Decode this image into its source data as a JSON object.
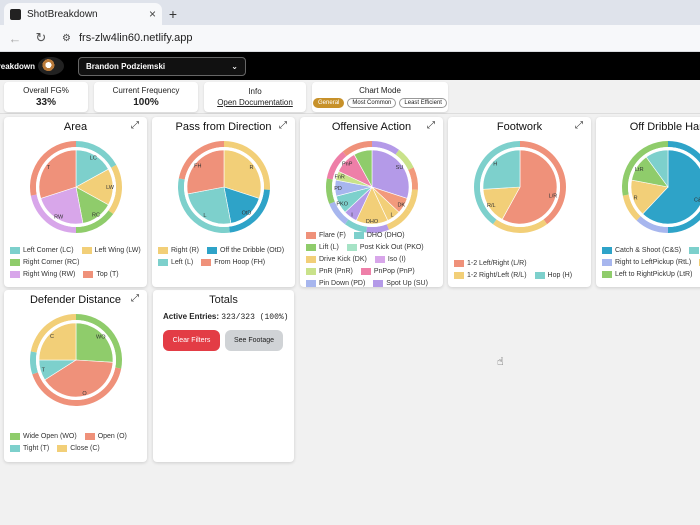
{
  "browser": {
    "tab_title": "ShotBreakdown",
    "tab_close": "×",
    "new_tab": "+",
    "url": "frs-zlw4lin60.netlify.app",
    "back_icon": "←",
    "reload_icon": "↻",
    "site_icon": "⚙"
  },
  "app": {
    "brand": "ShotBreakdown",
    "player": "Brandon Podziemski",
    "player_chevron": "⌄"
  },
  "stats": {
    "fg_label": "Overall FG%",
    "fg_value": "33%",
    "freq_label": "Current Frequency",
    "freq_value": "100%",
    "info_label": "Info",
    "info_link": "Open Documentation",
    "mode_label": "Chart Mode",
    "modes": [
      "General",
      "Most Common",
      "Least Efficient"
    ]
  },
  "colors": {
    "green": "#8fcc6b",
    "teal": "#7dd0cc",
    "yellow": "#f2cf78",
    "salmon": "#ef917a",
    "lilac": "#d8a6ea",
    "blue": "#2ea3c8",
    "purple": "#b49ae8",
    "lightblue": "#a7b6ee",
    "pink": "#ee7fa8",
    "lime": "#c9e28a",
    "mint": "#a6e3c6",
    "coral": "#f29a7c"
  },
  "charts": [
    {
      "title": "Area",
      "expand_icon": "⤢",
      "slices": [
        {
          "code": "LC",
          "pct": 0.17,
          "color": "#7dd0cc"
        },
        {
          "code": "LW",
          "pct": 0.16,
          "color": "#f2cf78"
        },
        {
          "code": "RC",
          "pct": 0.14,
          "color": "#8fcc6b"
        },
        {
          "code": "RW",
          "pct": 0.23,
          "color": "#d8a6ea"
        },
        {
          "code": "T",
          "pct": 0.3,
          "color": "#ef917a"
        }
      ],
      "outer": [
        {
          "pct": 0.17,
          "color": "#7dd0cc"
        },
        {
          "pct": 0.18,
          "color": "#f2cf78"
        },
        {
          "pct": 0.15,
          "color": "#8fcc6b"
        },
        {
          "pct": 0.22,
          "color": "#d8a6ea"
        },
        {
          "pct": 0.28,
          "color": "#ef917a"
        }
      ],
      "legend": [
        {
          "label": "Left Corner (LC)",
          "color": "#7dd0cc"
        },
        {
          "label": "Left Wing (LW)",
          "color": "#f2cf78"
        },
        {
          "label": "Right Corner (RC)",
          "color": "#8fcc6b"
        },
        {
          "label": "Right Wing (RW)",
          "color": "#d8a6ea"
        },
        {
          "label": "Top (T)",
          "color": "#ef917a"
        }
      ]
    },
    {
      "title": "Pass from Direction",
      "expand_icon": "⤢",
      "slices": [
        {
          "code": "R",
          "pct": 0.3,
          "color": "#f2cf78"
        },
        {
          "code": "OtD",
          "pct": 0.17,
          "color": "#2ea3c8"
        },
        {
          "code": "L",
          "pct": 0.25,
          "color": "#7dd0cc"
        },
        {
          "code": "FH",
          "pct": 0.28,
          "color": "#ef917a"
        }
      ],
      "outer": [
        {
          "pct": 0.26,
          "color": "#f2cf78"
        },
        {
          "pct": 0.22,
          "color": "#2ea3c8"
        },
        {
          "pct": 0.3,
          "color": "#7dd0cc"
        },
        {
          "pct": 0.22,
          "color": "#ef917a"
        }
      ],
      "legend": [
        {
          "label": "Right (R)",
          "color": "#f2cf78"
        },
        {
          "label": "Off the Dribble (OtD)",
          "color": "#2ea3c8"
        },
        {
          "label": "Left (L)",
          "color": "#7dd0cc"
        },
        {
          "label": "From Hoop (FH)",
          "color": "#ef917a"
        }
      ]
    },
    {
      "title": "Offensive Action",
      "expand_icon": "⤢",
      "slices": [
        {
          "code": "SU",
          "pct": 0.3,
          "color": "#b49ae8"
        },
        {
          "code": "DK",
          "pct": 0.07,
          "color": "#f29a7c"
        },
        {
          "code": "L",
          "pct": 0.06,
          "color": "#f2cf78"
        },
        {
          "code": "DHO",
          "pct": 0.14,
          "color": "#f2cf78"
        },
        {
          "code": "I",
          "pct": 0.06,
          "color": "#b49ae8"
        },
        {
          "code": "PKO",
          "pct": 0.08,
          "color": "#7dd0cc"
        },
        {
          "code": "PD",
          "pct": 0.07,
          "color": "#a7b6ee"
        },
        {
          "code": "FnR",
          "pct": 0.04,
          "color": "#c9e28a"
        },
        {
          "code": "PnP",
          "pct": 0.1,
          "color": "#ee7fa8"
        },
        {
          "code": "",
          "pct": 0.08,
          "color": "#8fcc6b"
        }
      ],
      "outer": [
        {
          "pct": 0.1,
          "color": "#b49ae8"
        },
        {
          "pct": 0.08,
          "color": "#c9e28a"
        },
        {
          "pct": 0.08,
          "color": "#f29a7c"
        },
        {
          "pct": 0.08,
          "color": "#f2cf78"
        },
        {
          "pct": 0.1,
          "color": "#f2cf78"
        },
        {
          "pct": 0.08,
          "color": "#b49ae8"
        },
        {
          "pct": 0.08,
          "color": "#7dd0cc"
        },
        {
          "pct": 0.09,
          "color": "#a7b6ee"
        },
        {
          "pct": 0.09,
          "color": "#8fcc6b"
        },
        {
          "pct": 0.11,
          "color": "#ee7fa8"
        },
        {
          "pct": 0.11,
          "color": "#ef917a"
        }
      ],
      "legend": [
        {
          "label": "Flare (F)",
          "color": "#ef917a"
        },
        {
          "label": "DHO (DHO)",
          "color": "#7dd0cc"
        },
        {
          "label": "Lift (L)",
          "color": "#8fcc6b"
        },
        {
          "label": "Post Kick Out (PKO)",
          "color": "#a6e3c6"
        },
        {
          "label": "Drive Kick (DK)",
          "color": "#f2cf78"
        },
        {
          "label": "Iso (I)",
          "color": "#d8a6ea"
        },
        {
          "label": "PnR (PnR)",
          "color": "#c9e28a"
        },
        {
          "label": "PnPop (PnP)",
          "color": "#ee7fa8"
        },
        {
          "label": "Pin Down (PD)",
          "color": "#a7b6ee"
        },
        {
          "label": "Spot Up (SU)",
          "color": "#b49ae8"
        }
      ]
    },
    {
      "title": "Footwork",
      "expand_icon": "⤢",
      "slices": [
        {
          "code": "L/R",
          "pct": 0.58,
          "color": "#ef917a"
        },
        {
          "code": "R/L",
          "pct": 0.16,
          "color": "#f2cf78"
        },
        {
          "code": "H",
          "pct": 0.26,
          "color": "#7dd0cc"
        }
      ],
      "outer": [
        {
          "pct": 0.4,
          "color": "#ef917a"
        },
        {
          "pct": 0.2,
          "color": "#f2cf78"
        },
        {
          "pct": 0.4,
          "color": "#7dd0cc"
        }
      ],
      "legend": [
        {
          "label": "1-2 Left/Right (L/R)",
          "color": "#ef917a"
        },
        {
          "label": "1-2 Right/Left (R/L)",
          "color": "#f2cf78"
        },
        {
          "label": "Hop (H)",
          "color": "#7dd0cc"
        }
      ]
    },
    {
      "title": "Off Dribble Han",
      "expand_icon": "",
      "slices": [
        {
          "code": "C&S",
          "pct": 0.62,
          "color": "#2ea3c8"
        },
        {
          "code": "R",
          "pct": 0.16,
          "color": "#f2cf78"
        },
        {
          "code": "LtR",
          "pct": 0.12,
          "color": "#8fcc6b"
        },
        {
          "code": "",
          "pct": 0.1,
          "color": "#7dd0cc"
        }
      ],
      "outer": [
        {
          "pct": 0.5,
          "color": "#2ea3c8"
        },
        {
          "pct": 0.12,
          "color": "#a7b6ee"
        },
        {
          "pct": 0.1,
          "color": "#f2cf78"
        },
        {
          "pct": 0.28,
          "color": "#8fcc6b"
        }
      ],
      "legend": [
        {
          "label": "Catch & Shoot (C&S)",
          "color": "#2ea3c8"
        },
        {
          "label": "Le",
          "color": "#7dd0cc"
        },
        {
          "label": "Right to LeftPickup (RtL)",
          "color": "#a7b6ee"
        },
        {
          "label": "",
          "color": "#f2cf78"
        },
        {
          "label": "Left to RightPickUp (LtR)",
          "color": "#8fcc6b"
        }
      ]
    },
    {
      "title": "Defender Distance",
      "expand_icon": "⤢",
      "slices": [
        {
          "code": "WO",
          "pct": 0.26,
          "color": "#8fcc6b"
        },
        {
          "code": "O",
          "pct": 0.4,
          "color": "#ef917a"
        },
        {
          "code": "T",
          "pct": 0.09,
          "color": "#7dd0cc"
        },
        {
          "code": "C",
          "pct": 0.25,
          "color": "#f2cf78"
        }
      ],
      "outer": [
        {
          "pct": 0.28,
          "color": "#8fcc6b"
        },
        {
          "pct": 0.42,
          "color": "#ef917a"
        },
        {
          "pct": 0.08,
          "color": "#7dd0cc"
        },
        {
          "pct": 0.22,
          "color": "#f2cf78"
        }
      ],
      "legend": [
        {
          "label": "Wide Open (WO)",
          "color": "#8fcc6b"
        },
        {
          "label": "Open (O)",
          "color": "#ef917a"
        },
        {
          "label": "Tight (T)",
          "color": "#7dd0cc"
        },
        {
          "label": "Close (C)",
          "color": "#f2cf78"
        }
      ]
    }
  ],
  "totals": {
    "title": "Totals",
    "entries_label": "Active Entries:",
    "entries_value": "323/323 (100%)",
    "clear_label": "Clear Filters",
    "footage_label": "See Footage"
  }
}
